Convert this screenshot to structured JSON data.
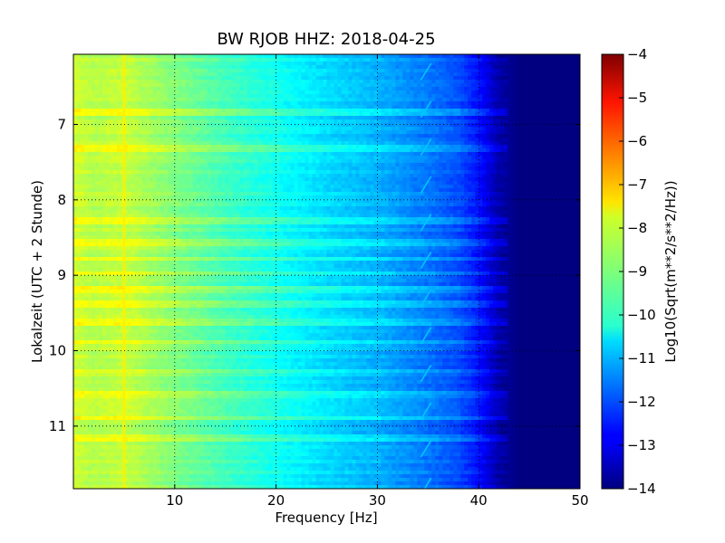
{
  "chart_data": {
    "type": "heatmap",
    "title": "BW RJOB HHZ: 2018-04-25",
    "xlabel": "Frequency [Hz]",
    "ylabel": "Lokalzeit (UTC + 2 Stunde)",
    "xlim": [
      0,
      50
    ],
    "ylim": [
      6.07,
      11.83
    ],
    "y_inverted": true,
    "x_ticks": [
      10,
      20,
      30,
      40,
      50
    ],
    "y_ticks": [
      7,
      8,
      9,
      10,
      11
    ],
    "grid": true,
    "colormap": "jet",
    "colorbar": {
      "label": "Log10(Sqrt(m**2/s**2/Hz))",
      "min": -14,
      "max": -4,
      "ticks": [
        -4,
        -5,
        -6,
        -7,
        -8,
        -9,
        -10,
        -11,
        -12,
        -13,
        -14
      ],
      "tick_labels": [
        "−4",
        "−5",
        "−6",
        "−7",
        "−8",
        "−9",
        "−10",
        "−11",
        "−12",
        "−13",
        "−14"
      ]
    },
    "spectral_profile": {
      "frequency_hz": [
        0,
        2,
        5,
        10,
        15,
        20,
        25,
        30,
        35,
        38,
        40,
        42,
        44,
        50
      ],
      "log10_amplitude": [
        -8.2,
        -8.5,
        -8.3,
        -9.0,
        -9.6,
        -10.1,
        -10.6,
        -11.0,
        -11.6,
        -12.0,
        -12.6,
        -13.6,
        -14.0,
        -14.0
      ]
    },
    "features": {
      "narrowband_line_hz": 5,
      "narrowband_line_level": -7.6,
      "drifting_tone_hz": [
        34.3,
        35.3
      ],
      "drifting_tone_level": -10.8,
      "high_noise_times": [
        6.83,
        7.33,
        8.28,
        8.57,
        8.78,
        8.98,
        9.2,
        9.38,
        9.62,
        9.88,
        10.27,
        10.58,
        10.9,
        11.17
      ]
    }
  }
}
